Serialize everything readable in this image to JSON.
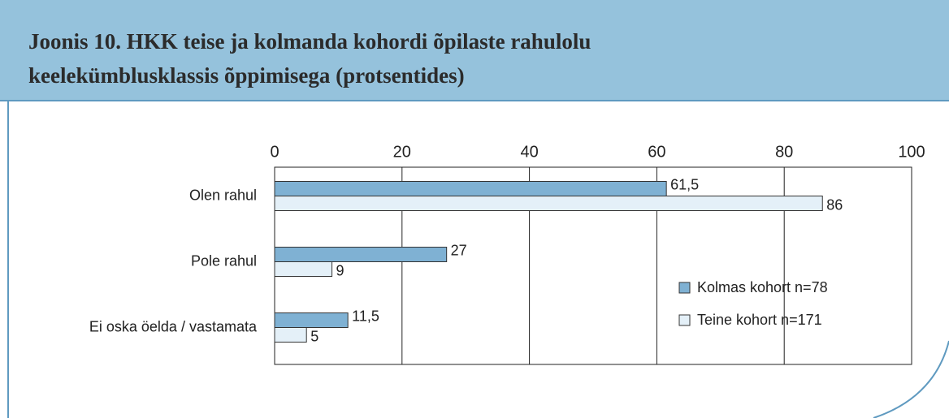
{
  "chart_data": {
    "type": "barh",
    "title": "Joonis 10. HKK teise ja kolmanda kohordi õpilaste rahulolu keelekümblusklassis õppimisega (protsentides)",
    "categories": [
      "Olen rahul",
      "Pole rahul",
      "Ei oska öelda / vastamata"
    ],
    "series": [
      {
        "name": "Kolmas kohort n=78",
        "color": "#7fb1d3",
        "values": [
          61.5,
          27,
          11.5
        ],
        "value_labels": [
          "61,5",
          "27",
          "11,5"
        ]
      },
      {
        "name": "Teine kohort n=171",
        "color": "#e4f0f8",
        "values": [
          86,
          9,
          5
        ],
        "value_labels": [
          "86",
          "9",
          "5"
        ]
      }
    ],
    "xlim": [
      0,
      100
    ],
    "xticks": [
      0,
      20,
      40,
      60,
      80,
      100
    ],
    "grid": true,
    "legend": "lower right"
  }
}
